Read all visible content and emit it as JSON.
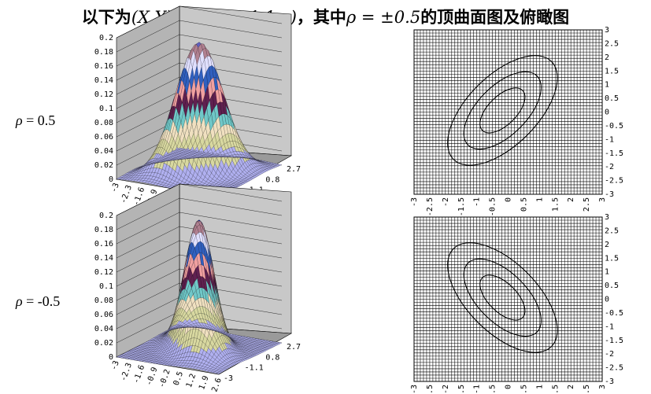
{
  "title": {
    "prefix": "以下为",
    "formula": "(X,Y) ~ N(0,0,1,1,ρ)",
    "middle": "，其中",
    "rho_expr": "ρ = ±0.5",
    "suffix": "的顶曲面图及俯瞰图"
  },
  "row_labels": [
    {
      "symbol": "ρ",
      "text": " = 0.5"
    },
    {
      "symbol": "ρ",
      "text": " = -0.5"
    }
  ],
  "chart_data": [
    {
      "type": "surface",
      "rho": 0.5,
      "zlim": [
        0,
        0.2
      ],
      "z_ticks": [
        "0.2",
        "0.18",
        "0.16",
        "0.14",
        "0.12",
        "0.1",
        "0.08",
        "0.06",
        "0.04",
        "0.02",
        "0"
      ],
      "x_ticks": [
        "-3",
        "-2.3",
        "-1.6",
        "-0.9",
        "-0.2",
        "0.5",
        "1.2",
        "1.9",
        "2.6"
      ],
      "y_ticks": [
        "2.7",
        "0.8",
        "-1.1",
        "-3"
      ],
      "band_colors": [
        "#b0b0f0",
        "#d8d8a0",
        "#f0e0c0",
        "#70c8c8",
        "#602050",
        "#f0a0a0",
        "#3060c0",
        "#e0e0ff",
        "#b08090",
        "#6060c0"
      ]
    },
    {
      "type": "contour",
      "rho": 0.5,
      "xlim": [
        -3,
        3
      ],
      "ylim": [
        -3,
        3
      ],
      "x_ticks": [
        "-3",
        "-2.5",
        "-2",
        "-1.5",
        "-1",
        "-0.5",
        "0",
        "0.5",
        "1",
        "1.5",
        "2",
        "2.5",
        "3"
      ],
      "y_ticks": [
        "3",
        "2.5",
        "2",
        "1.5",
        "1",
        "0.5",
        "0",
        "-0.5",
        "-1",
        "-1.5",
        "-2",
        "-2.5",
        "-3"
      ]
    },
    {
      "type": "surface",
      "rho": -0.5,
      "zlim": [
        0,
        0.2
      ],
      "z_ticks": [
        "0.2",
        "0.18",
        "0.16",
        "0.14",
        "0.12",
        "0.1",
        "0.08",
        "0.06",
        "0.04",
        "0.02",
        "0"
      ],
      "x_ticks": [
        "-3",
        "-2.3",
        "-1.6",
        "-0.9",
        "-0.2",
        "0.5",
        "1.2",
        "1.9",
        "2.6"
      ],
      "y_ticks": [
        "2.7",
        "0.8",
        "-1.1",
        "-3"
      ],
      "band_colors": [
        "#b0b0f0",
        "#d8d8a0",
        "#f0e0c0",
        "#70c8c8",
        "#602050",
        "#f0a0a0",
        "#3060c0",
        "#e0e0ff",
        "#b08090",
        "#2030a0"
      ]
    },
    {
      "type": "contour",
      "rho": -0.5,
      "xlim": [
        -3,
        3
      ],
      "ylim": [
        -3,
        3
      ],
      "x_ticks": [
        "-3",
        "-2.5",
        "-2",
        "-1.5",
        "-1",
        "-0.5",
        "0",
        "0.5",
        "1",
        "1.5",
        "2",
        "2.5",
        "3"
      ],
      "y_ticks": [
        "3",
        "2.5",
        "2",
        "1.5",
        "1",
        "0.5",
        "0",
        "-0.5",
        "-1",
        "-1.5",
        "-2",
        "-2.5",
        "-3"
      ]
    }
  ]
}
